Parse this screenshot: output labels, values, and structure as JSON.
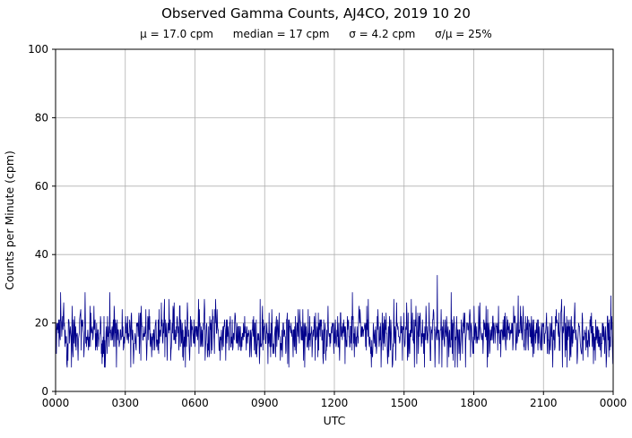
{
  "figure": {
    "title": "Observed Gamma Counts, AJ4CO, 2019 10 20",
    "stats_line": {
      "mu": "μ = 17.0 cpm",
      "median": "median = 17 cpm",
      "sigma": "σ = 4.2 cpm",
      "sigma_over_mu": "σ/μ = 25%"
    }
  },
  "chart_data": {
    "type": "line",
    "title": "Observed Gamma Counts, AJ4CO, 2019 10 20",
    "xlabel": "UTC",
    "ylabel": "Counts per Minute (cpm)",
    "xlim_minutes": [
      0,
      1440
    ],
    "ylim": [
      0,
      100
    ],
    "x_tick_minutes": [
      0,
      180,
      360,
      540,
      720,
      900,
      1080,
      1260,
      1440
    ],
    "x_tick_labels": [
      "0000",
      "0300",
      "0600",
      "0900",
      "1200",
      "1500",
      "1800",
      "2100",
      "0000"
    ],
    "y_ticks": [
      0,
      20,
      40,
      60,
      80,
      100
    ],
    "grid": true,
    "legend": "none",
    "line_color": "#00008B",
    "grid_color": "#b0b0b0",
    "stats": {
      "mean_cpm": 17.0,
      "median_cpm": 17,
      "sigma_cpm": 4.2,
      "sigma_over_mu_percent": 25,
      "observed_min_cpm": 7,
      "observed_max_cpm": 34
    },
    "series_description": "One gamma count sample per minute over 24 hours (1440 points), noise-like around the mean",
    "noise_model": {
      "n_points": 1440,
      "mean": 17.0,
      "sigma": 4.2,
      "clip_min": 7,
      "clip_max": 31,
      "seed": 20191020,
      "spike": {
        "minute": 985,
        "value": 34
      }
    }
  }
}
